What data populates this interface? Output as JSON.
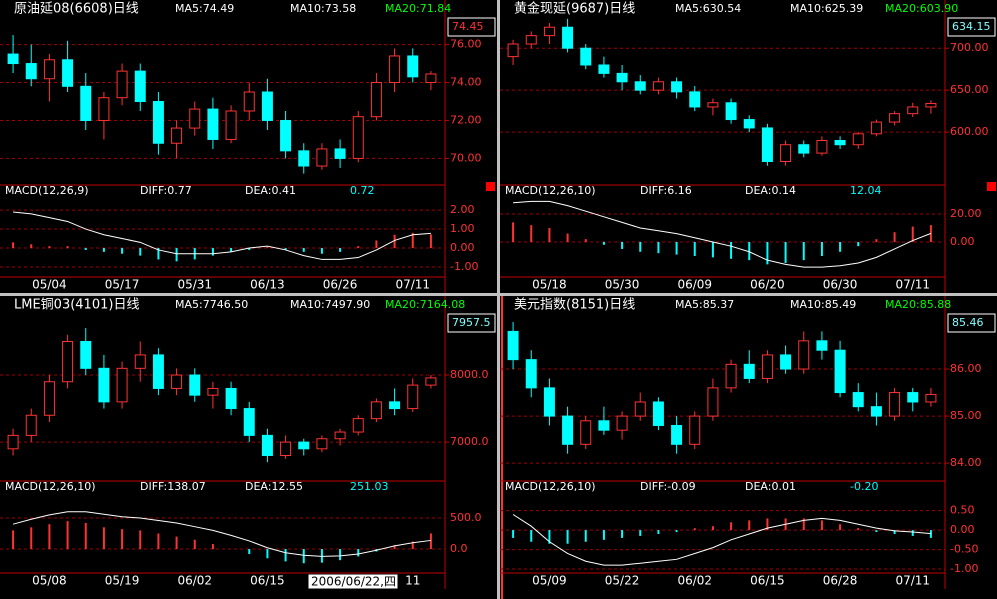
{
  "panels": [
    {
      "type": "candlestick",
      "title": "原油延08(6608)日线",
      "ma5": "MA5:74.49",
      "ma10": "MA10:73.58",
      "ma20": "MA20:71.84",
      "last": "74.45",
      "last_color": "#ff3232",
      "ylim": [
        68.6,
        77.4
      ],
      "yticks": [
        {
          "value": 70,
          "label": "70.00"
        },
        {
          "value": 72,
          "label": "72.00"
        },
        {
          "value": 74,
          "label": "74.00"
        },
        {
          "value": 76,
          "label": "76.00"
        }
      ],
      "candles": [
        [
          75.5,
          76.5,
          74.5,
          75.0
        ],
        [
          75.0,
          76.0,
          73.8,
          74.2
        ],
        [
          74.2,
          75.5,
          73.0,
          75.2
        ],
        [
          75.2,
          76.2,
          73.5,
          73.8
        ],
        [
          73.8,
          74.5,
          71.5,
          72.0
        ],
        [
          72.0,
          73.5,
          71.0,
          73.2
        ],
        [
          73.2,
          75.0,
          72.8,
          74.6
        ],
        [
          74.6,
          75.0,
          72.5,
          73.0
        ],
        [
          73.0,
          73.5,
          70.2,
          70.8
        ],
        [
          70.8,
          72.0,
          70.0,
          71.6
        ],
        [
          71.6,
          73.0,
          71.2,
          72.6
        ],
        [
          72.6,
          73.2,
          70.5,
          71.0
        ],
        [
          71.0,
          72.8,
          70.8,
          72.5
        ],
        [
          72.5,
          74.0,
          72.0,
          73.5
        ],
        [
          73.5,
          74.2,
          71.5,
          72.0
        ],
        [
          72.0,
          72.5,
          70.0,
          70.4
        ],
        [
          70.4,
          70.8,
          69.2,
          69.6
        ],
        [
          69.6,
          70.8,
          69.4,
          70.5
        ],
        [
          70.5,
          71.0,
          69.5,
          70.0
        ],
        [
          70.0,
          72.5,
          69.8,
          72.2
        ],
        [
          72.2,
          74.5,
          72.0,
          74.0
        ],
        [
          74.0,
          75.8,
          73.5,
          75.4
        ],
        [
          75.4,
          75.8,
          74.0,
          74.3
        ],
        [
          74.0,
          74.6,
          73.6,
          74.45
        ]
      ],
      "macd_title": "MACD(12,26,9)",
      "diff": "DIFF:0.77",
      "dea": "DEA:0.41",
      "macd": "0.72",
      "macd_ylim": [
        -1.42,
        2.53
      ],
      "macd_yticks": [
        {
          "value": -1,
          "label": "-1.00"
        },
        {
          "value": 0,
          "label": "0.00"
        },
        {
          "value": 1,
          "label": "1.00"
        },
        {
          "value": 2,
          "label": "2.00"
        }
      ],
      "hist": [
        0.3,
        0.2,
        0.1,
        0.1,
        -0.1,
        -0.2,
        -0.3,
        -0.4,
        -0.6,
        -0.7,
        -0.6,
        -0.4,
        -0.2,
        -0.1,
        0.05,
        -0.1,
        -0.2,
        -0.3,
        -0.2,
        0.1,
        0.4,
        0.7,
        0.8,
        0.72
      ],
      "diff_line": [
        1.9,
        1.8,
        1.6,
        1.4,
        1.0,
        0.7,
        0.5,
        0.3,
        -0.1,
        -0.3,
        -0.3,
        -0.3,
        -0.2,
        0.0,
        0.1,
        -0.1,
        -0.4,
        -0.6,
        -0.6,
        -0.5,
        -0.1,
        0.4,
        0.7,
        0.77
      ],
      "categories": [
        null,
        null,
        "05/04",
        null,
        null,
        null,
        "05/17",
        null,
        null,
        null,
        "05/31",
        null,
        null,
        null,
        "06/13",
        null,
        null,
        null,
        "06/26",
        null,
        null,
        null,
        "07/11",
        null
      ]
    },
    {
      "type": "candlestick",
      "title": "黄金现延(9687)日线",
      "ma5": "MA5:630.54",
      "ma10": "MA10:625.39",
      "ma20": "MA20:603.90",
      "last": "634.15",
      "last_color": "#80ffff",
      "ylim": [
        537,
        736
      ],
      "yticks": [
        {
          "value": 600,
          "label": "600.00"
        },
        {
          "value": 650,
          "label": "650.00"
        },
        {
          "value": 700,
          "label": "700.00"
        }
      ],
      "candles": [
        [
          690,
          710,
          680,
          705
        ],
        [
          705,
          720,
          700,
          715
        ],
        [
          715,
          730,
          705,
          725
        ],
        [
          725,
          735,
          695,
          700
        ],
        [
          700,
          705,
          675,
          680
        ],
        [
          680,
          690,
          665,
          670
        ],
        [
          670,
          680,
          650,
          660
        ],
        [
          660,
          668,
          645,
          650
        ],
        [
          650,
          665,
          645,
          660
        ],
        [
          660,
          665,
          640,
          648
        ],
        [
          648,
          655,
          625,
          630
        ],
        [
          630,
          640,
          620,
          635
        ],
        [
          635,
          640,
          610,
          615
        ],
        [
          615,
          620,
          600,
          605
        ],
        [
          605,
          610,
          560,
          565
        ],
        [
          565,
          590,
          560,
          585
        ],
        [
          585,
          590,
          570,
          575
        ],
        [
          575,
          595,
          572,
          590
        ],
        [
          590,
          595,
          580,
          585
        ],
        [
          585,
          600,
          580,
          598
        ],
        [
          598,
          615,
          595,
          612
        ],
        [
          612,
          625,
          608,
          622
        ],
        [
          622,
          635,
          618,
          630
        ],
        [
          630,
          638,
          622,
          634.15
        ]
      ],
      "macd_title": "MACD(12,26,10)",
      "diff": "DIFF:6.16",
      "dea": "DEA:0.14",
      "macd": "12.04",
      "macd_ylim": [
        -23.6,
        30
      ],
      "macd_yticks": [
        {
          "value": 0,
          "label": "0.00"
        },
        {
          "value": 20,
          "label": "20.00"
        }
      ],
      "hist": [
        14,
        12,
        10,
        6,
        2,
        -2,
        -5,
        -7,
        -8,
        -9,
        -10,
        -11,
        -12,
        -13,
        -16,
        -15,
        -13,
        -10,
        -7,
        -3,
        2,
        7,
        11,
        12.04
      ],
      "diff_line": [
        28,
        29,
        29,
        26,
        22,
        18,
        14,
        10,
        8,
        6,
        3,
        0,
        -3,
        -7,
        -13,
        -16,
        -18,
        -18,
        -17,
        -15,
        -11,
        -5,
        1,
        6.16
      ],
      "categories": [
        null,
        null,
        "05/18",
        null,
        null,
        null,
        "05/30",
        null,
        null,
        null,
        "06/09",
        null,
        null,
        null,
        "06/20",
        null,
        null,
        null,
        "06/30",
        null,
        null,
        null,
        "07/11",
        null
      ]
    },
    {
      "type": "candlestick",
      "title": "LME铜03(4101)日线",
      "ma5": "MA5:7746.50",
      "ma10": "MA10:7497.90",
      "ma20": "MA20:7164.08",
      "last": "7957.5",
      "last_color": "#80ffff",
      "ylim": [
        6420,
        8910
      ],
      "yticks": [
        {
          "value": 7000,
          "label": "7000.0"
        },
        {
          "value": 8000,
          "label": "8000.0"
        }
      ],
      "candles": [
        [
          6900,
          7200,
          6800,
          7100
        ],
        [
          7100,
          7500,
          7000,
          7400
        ],
        [
          7400,
          8000,
          7300,
          7900
        ],
        [
          7900,
          8600,
          7800,
          8500
        ],
        [
          8500,
          8700,
          8000,
          8100
        ],
        [
          8100,
          8300,
          7500,
          7600
        ],
        [
          7600,
          8200,
          7500,
          8100
        ],
        [
          8100,
          8500,
          7900,
          8300
        ],
        [
          8300,
          8400,
          7700,
          7800
        ],
        [
          7800,
          8100,
          7700,
          8000
        ],
        [
          8000,
          8100,
          7600,
          7700
        ],
        [
          7700,
          7900,
          7500,
          7800
        ],
        [
          7800,
          7900,
          7400,
          7500
        ],
        [
          7500,
          7600,
          7000,
          7100
        ],
        [
          7100,
          7200,
          6700,
          6800
        ],
        [
          6800,
          7100,
          6750,
          7000
        ],
        [
          7000,
          7050,
          6800,
          6900
        ],
        [
          6900,
          7100,
          6850,
          7050
        ],
        [
          7050,
          7200,
          6950,
          7150
        ],
        [
          7150,
          7400,
          7100,
          7350
        ],
        [
          7350,
          7650,
          7300,
          7600
        ],
        [
          7600,
          7800,
          7400,
          7500
        ],
        [
          7500,
          7950,
          7450,
          7850
        ],
        [
          7850,
          8000,
          7800,
          7957.5
        ]
      ],
      "macd_title": "MACD(12,26,10)",
      "diff": "DIFF:138.07",
      "dea": "DEA:12.55",
      "macd": "251.03",
      "macd_ylim": [
        -355,
        855
      ],
      "macd_yticks": [
        {
          "value": 0,
          "label": "0.0"
        },
        {
          "value": 500,
          "label": "500.0"
        }
      ],
      "hist": [
        300,
        350,
        400,
        450,
        420,
        350,
        320,
        300,
        250,
        200,
        150,
        80,
        0,
        -80,
        -150,
        -200,
        -230,
        -220,
        -180,
        -120,
        -40,
        60,
        120,
        251.03
      ],
      "diff_line": [
        400,
        480,
        550,
        600,
        600,
        560,
        520,
        500,
        460,
        420,
        360,
        300,
        220,
        130,
        20,
        -60,
        -100,
        -120,
        -110,
        -80,
        -20,
        50,
        100,
        138.07
      ],
      "categories": [
        null,
        null,
        "05/08",
        null,
        null,
        null,
        "05/19",
        null,
        null,
        null,
        "06/02",
        null,
        null,
        null,
        "06/15",
        null,
        null,
        null,
        null,
        null,
        null,
        null,
        "11",
        null
      ],
      "tooltip": "2006/06/22,四"
    },
    {
      "type": "candlestick",
      "title": "美元指数(8151)日线",
      "ma5": "MA5:85.37",
      "ma10": "MA10:85.49",
      "ma20": "MA20:85.88",
      "last": "85.46",
      "last_color": "#80ffff",
      "ylim": [
        83.62,
        87.17
      ],
      "yticks": [
        {
          "value": 84,
          "label": "84.00"
        },
        {
          "value": 85,
          "label": "85.00"
        },
        {
          "value": 86,
          "label": "86.00"
        }
      ],
      "candles": [
        [
          86.8,
          87.0,
          86.0,
          86.2
        ],
        [
          86.2,
          86.4,
          85.4,
          85.6
        ],
        [
          85.6,
          85.8,
          84.8,
          85.0
        ],
        [
          85.0,
          85.2,
          84.2,
          84.4
        ],
        [
          84.4,
          85.0,
          84.3,
          84.9
        ],
        [
          84.9,
          85.2,
          84.6,
          84.7
        ],
        [
          84.7,
          85.1,
          84.5,
          85.0
        ],
        [
          85.0,
          85.5,
          84.9,
          85.3
        ],
        [
          85.3,
          85.4,
          84.7,
          84.8
        ],
        [
          84.8,
          85.0,
          84.2,
          84.4
        ],
        [
          84.4,
          85.1,
          84.3,
          85.0
        ],
        [
          85.0,
          85.8,
          84.9,
          85.6
        ],
        [
          85.6,
          86.2,
          85.5,
          86.1
        ],
        [
          86.1,
          86.4,
          85.7,
          85.8
        ],
        [
          85.8,
          86.4,
          85.7,
          86.3
        ],
        [
          86.3,
          86.5,
          85.9,
          86.0
        ],
        [
          86.0,
          86.8,
          85.9,
          86.6
        ],
        [
          86.6,
          86.8,
          86.2,
          86.4
        ],
        [
          86.4,
          86.6,
          85.4,
          85.5
        ],
        [
          85.5,
          85.7,
          85.1,
          85.2
        ],
        [
          85.2,
          85.5,
          84.8,
          85.0
        ],
        [
          85.0,
          85.6,
          84.9,
          85.5
        ],
        [
          85.5,
          85.6,
          85.1,
          85.3
        ],
        [
          85.3,
          85.6,
          85.2,
          85.46
        ]
      ],
      "macd_title": "MACD(12,26,10)",
      "diff": "DIFF:-0.09",
      "dea": "DEA:0.01",
      "macd": "-0.20",
      "macd_ylim": [
        -1.05,
        0.875
      ],
      "macd_yticks": [
        {
          "value": -1,
          "label": "-1.00"
        },
        {
          "value": -0.5,
          "label": "-0.50"
        },
        {
          "value": 0,
          "label": "0.00"
        },
        {
          "value": 0.5,
          "label": "0.50"
        }
      ],
      "hist": [
        -0.2,
        -0.3,
        -0.35,
        -0.35,
        -0.3,
        -0.25,
        -0.2,
        -0.15,
        -0.1,
        -0.05,
        0.05,
        0.1,
        0.2,
        0.25,
        0.3,
        0.3,
        0.3,
        0.25,
        0.15,
        0.05,
        -0.05,
        -0.1,
        -0.15,
        -0.2
      ],
      "diff_line": [
        0.4,
        0.1,
        -0.3,
        -0.6,
        -0.8,
        -0.9,
        -0.9,
        -0.85,
        -0.8,
        -0.75,
        -0.6,
        -0.45,
        -0.25,
        -0.1,
        0.05,
        0.15,
        0.25,
        0.3,
        0.25,
        0.15,
        0.05,
        -0.02,
        -0.05,
        -0.09
      ],
      "categories": [
        null,
        null,
        "05/09",
        null,
        null,
        null,
        "05/22",
        null,
        null,
        null,
        "06/02",
        null,
        null,
        null,
        "06/15",
        null,
        null,
        null,
        "06/28",
        null,
        null,
        null,
        "07/11",
        null
      ]
    }
  ]
}
